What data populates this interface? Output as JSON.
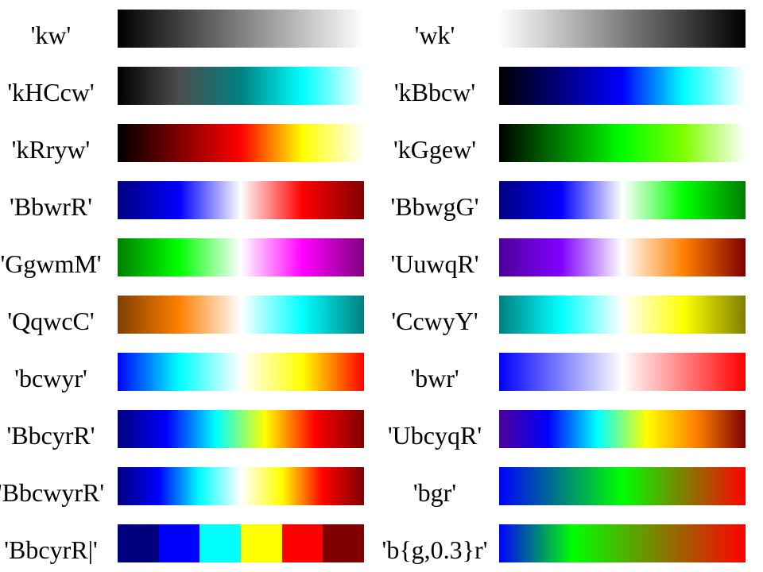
{
  "colormaps": [
    {
      "left": {
        "label": "'kw'",
        "stops": [
          "#000000",
          "#ffffff"
        ],
        "discrete": false
      },
      "right": {
        "label": "'wk'",
        "stops": [
          "#ffffff",
          "#000000"
        ],
        "discrete": false
      }
    },
    {
      "left": {
        "label": "'kHCcw'",
        "stops": [
          "#000000",
          "#4d4d4d",
          "#008080",
          "#00ffff",
          "#ffffff"
        ],
        "discrete": false
      },
      "right": {
        "label": "'kBbcw'",
        "stops": [
          "#000000",
          "#00007f",
          "#0000ff",
          "#00ffff",
          "#ffffff"
        ],
        "discrete": false
      }
    },
    {
      "left": {
        "label": "'kRryw'",
        "stops": [
          "#000000",
          "#800000",
          "#ff0000",
          "#ffff00",
          "#ffffff"
        ],
        "discrete": false
      },
      "right": {
        "label": "'kGgew'",
        "stops": [
          "#000000",
          "#008000",
          "#00ff00",
          "#80ff00",
          "#ffffff"
        ],
        "discrete": false
      }
    },
    {
      "left": {
        "label": "'BbwrR'",
        "stops": [
          "#00007f",
          "#0000ff",
          "#ffffff",
          "#ff0000",
          "#7f0000"
        ],
        "discrete": false
      },
      "right": {
        "label": "'BbwgG'",
        "stops": [
          "#00007f",
          "#0000ff",
          "#ffffff",
          "#00ff00",
          "#007f00"
        ],
        "discrete": false
      }
    },
    {
      "left": {
        "label": "'GgwmM'",
        "stops": [
          "#007f00",
          "#00ff00",
          "#ffffff",
          "#ff00ff",
          "#7f007f"
        ],
        "discrete": false
      },
      "right": {
        "label": "'UuwqR'",
        "stops": [
          "#4c0099",
          "#8000ff",
          "#ffffff",
          "#ff8000",
          "#7f0000"
        ],
        "discrete": false
      }
    },
    {
      "left": {
        "label": "'QqwcC'",
        "stops": [
          "#7f3f00",
          "#ff8000",
          "#ffffff",
          "#00ffff",
          "#007f7f"
        ],
        "discrete": false
      },
      "right": {
        "label": "'CcwyY'",
        "stops": [
          "#007f7f",
          "#00ffff",
          "#ffffff",
          "#ffff00",
          "#7f7f00"
        ],
        "discrete": false
      }
    },
    {
      "left": {
        "label": "'bcwyr'",
        "stops": [
          "#0000ff",
          "#00ffff",
          "#ffffff",
          "#ffff00",
          "#ff0000"
        ],
        "discrete": false
      },
      "right": {
        "label": "'bwr'",
        "stops": [
          "#0000ff",
          "#ffffff",
          "#ff0000"
        ],
        "discrete": false
      }
    },
    {
      "left": {
        "label": "'BbcyrR'",
        "stops": [
          "#00007f",
          "#0000ff",
          "#00ffff",
          "#ffff00",
          "#ff0000",
          "#7f0000"
        ],
        "discrete": false
      },
      "right": {
        "label": "'UbcyqR'",
        "stops": [
          "#4c0099",
          "#0000ff",
          "#00ffff",
          "#ffff00",
          "#ff8000",
          "#7f0000"
        ],
        "discrete": false
      }
    },
    {
      "left": {
        "label": "'BbcwyrR'",
        "stops": [
          "#00007f",
          "#0000ff",
          "#00ffff",
          "#ffffff",
          "#ffff00",
          "#ff0000",
          "#7f0000"
        ],
        "discrete": false
      },
      "right": {
        "label": "'bgr'",
        "stops": [
          "#0000ff",
          "#00ff00",
          "#ff0000"
        ],
        "discrete": false
      }
    },
    {
      "left": {
        "label": "'BbcyrR|'",
        "stops": [
          "#00007f",
          "#0000ff",
          "#00ffff",
          "#ffff00",
          "#ff0000",
          "#7f0000"
        ],
        "discrete": true
      },
      "right": {
        "label": "'b{g,0.3}r'",
        "stops": [
          "#0000ff",
          "#00ff00 30%",
          "#ff0000"
        ],
        "discrete": false
      }
    }
  ]
}
